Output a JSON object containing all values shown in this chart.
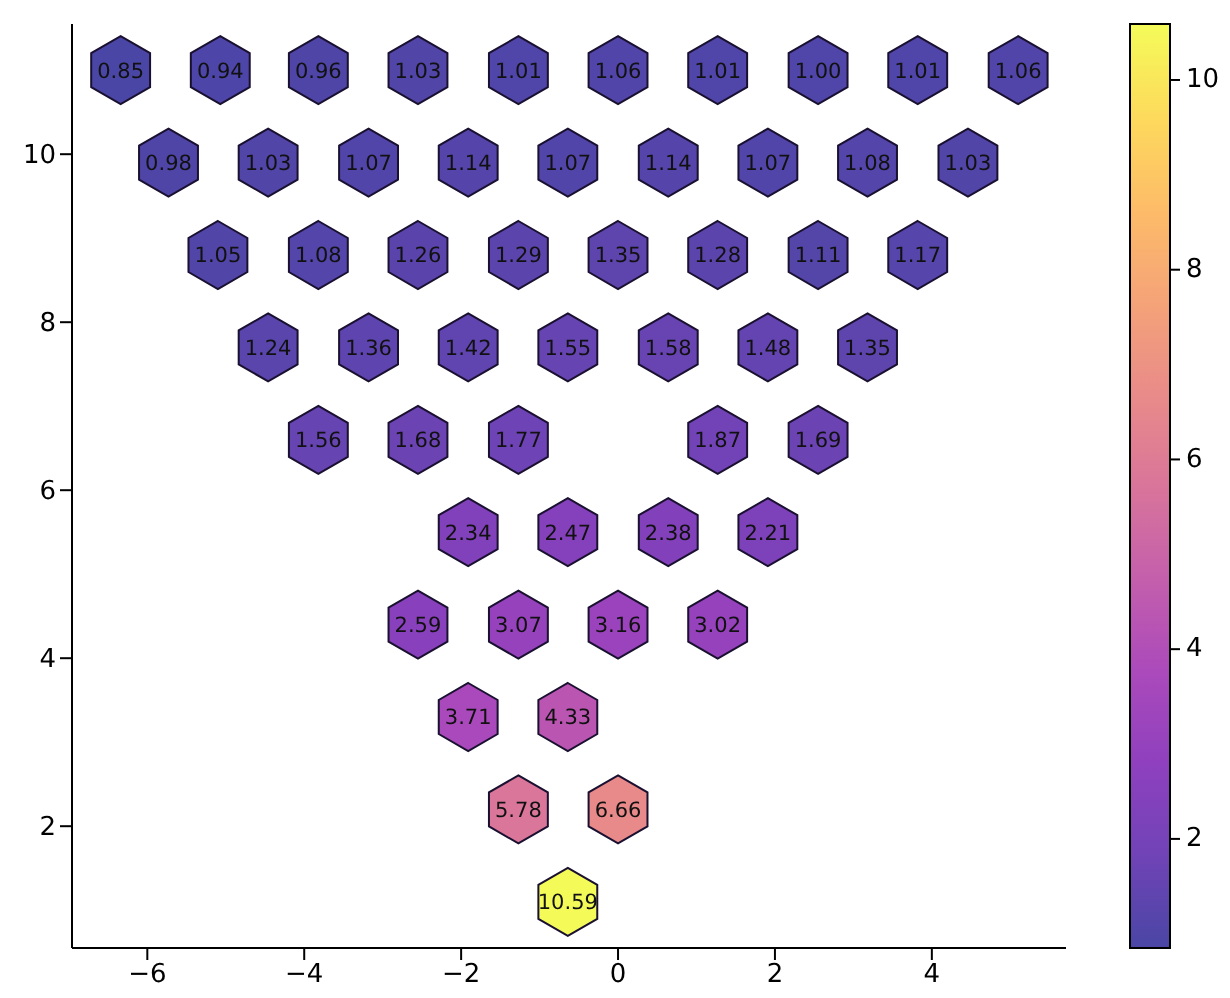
{
  "chart_data": {
    "type": "scatter",
    "x": [
      -6.34,
      -5.07,
      -3.82,
      -2.55,
      -1.27,
      0,
      1.27,
      2.55,
      3.82,
      5.1,
      -5.73,
      -4.46,
      -3.18,
      -1.91,
      -0.64,
      0.64,
      1.91,
      3.18,
      4.46,
      -5.1,
      -3.82,
      -2.55,
      -1.27,
      0,
      1.27,
      2.55,
      3.82,
      -4.46,
      -3.18,
      -1.91,
      -0.64,
      0.64,
      1.91,
      3.18,
      -3.82,
      -2.55,
      -1.27,
      1.27,
      2.55,
      -1.91,
      -0.64,
      0.64,
      1.91,
      -2.55,
      -1.27,
      0,
      1.27,
      -1.91,
      -0.64,
      -1.27,
      0,
      -0.64
    ],
    "values": [
      11,
      11,
      11,
      11,
      11,
      11,
      11,
      11,
      11,
      11,
      9.9,
      9.9,
      9.9,
      9.9,
      9.9,
      9.9,
      9.9,
      9.9,
      9.9,
      8.8,
      8.8,
      8.8,
      8.8,
      8.8,
      8.8,
      8.8,
      8.8,
      7.7,
      7.7,
      7.7,
      7.7,
      7.7,
      7.7,
      7.7,
      6.6,
      6.6,
      6.6,
      6.6,
      6.6,
      5.5,
      5.5,
      5.5,
      5.5,
      4.4,
      4.4,
      4.4,
      4.4,
      3.3,
      3.3,
      2.2,
      2.2,
      1.1
    ],
    "cvalues": [
      0.85,
      0.94,
      0.96,
      1.03,
      1.01,
      1.06,
      1.01,
      1.0,
      1.01,
      1.06,
      0.98,
      1.03,
      1.07,
      1.14,
      1.07,
      1.14,
      1.07,
      1.08,
      1.03,
      1.05,
      1.08,
      1.26,
      1.29,
      1.35,
      1.28,
      1.11,
      1.17,
      1.24,
      1.36,
      1.42,
      1.55,
      1.58,
      1.48,
      1.35,
      1.56,
      1.68,
      1.77,
      1.87,
      1.69,
      2.34,
      2.47,
      2.38,
      2.21,
      2.59,
      3.07,
      3.16,
      3.02,
      3.71,
      4.33,
      5.78,
      6.66,
      10.59
    ],
    "annotations": [
      {
        "text": "0.85",
        "x": -6.34,
        "y": 11
      },
      {
        "text": "0.94",
        "x": -5.07,
        "y": 11
      },
      {
        "text": "0.96",
        "x": -3.82,
        "y": 11
      },
      {
        "text": "1.03",
        "x": -2.55,
        "y": 11
      },
      {
        "text": "1.01",
        "x": -1.27,
        "y": 11
      },
      {
        "text": "1.06",
        "x": 0,
        "y": 11
      },
      {
        "text": "1.01",
        "x": 1.27,
        "y": 11
      },
      {
        "text": "1.00",
        "x": 2.55,
        "y": 11
      },
      {
        "text": "1.01",
        "x": 3.82,
        "y": 11
      },
      {
        "text": "1.06",
        "x": 5.1,
        "y": 11
      },
      {
        "text": "0.98",
        "x": -5.73,
        "y": 9.9
      },
      {
        "text": "1.03",
        "x": -4.46,
        "y": 9.9
      },
      {
        "text": "1.07",
        "x": -3.18,
        "y": 9.9
      },
      {
        "text": "1.14",
        "x": -1.91,
        "y": 9.9
      },
      {
        "text": "1.07",
        "x": -0.64,
        "y": 9.9
      },
      {
        "text": "1.14",
        "x": 0.64,
        "y": 9.9
      },
      {
        "text": "1.07",
        "x": 1.91,
        "y": 9.9
      },
      {
        "text": "1.08",
        "x": 3.18,
        "y": 9.9
      },
      {
        "text": "1.03",
        "x": 4.46,
        "y": 9.9
      },
      {
        "text": "1.05",
        "x": -5.1,
        "y": 8.8
      },
      {
        "text": "1.08",
        "x": -3.82,
        "y": 8.8
      },
      {
        "text": "1.26",
        "x": -2.55,
        "y": 8.8
      },
      {
        "text": "1.29",
        "x": -1.27,
        "y": 8.8
      },
      {
        "text": "1.35",
        "x": 0,
        "y": 8.8
      },
      {
        "text": "1.28",
        "x": 1.27,
        "y": 8.8
      },
      {
        "text": "1.11",
        "x": 2.55,
        "y": 8.8
      },
      {
        "text": "1.17",
        "x": 3.82,
        "y": 8.8
      },
      {
        "text": "1.24",
        "x": -4.46,
        "y": 7.7
      },
      {
        "text": "1.36",
        "x": -3.18,
        "y": 7.7
      },
      {
        "text": "1.42",
        "x": -1.91,
        "y": 7.7
      },
      {
        "text": "1.55",
        "x": -0.64,
        "y": 7.7
      },
      {
        "text": "1.58",
        "x": 0.64,
        "y": 7.7
      },
      {
        "text": "1.48",
        "x": 1.91,
        "y": 7.7
      },
      {
        "text": "1.35",
        "x": 3.18,
        "y": 7.7
      },
      {
        "text": "1.56",
        "x": -3.82,
        "y": 6.6
      },
      {
        "text": "1.68",
        "x": -2.55,
        "y": 6.6
      },
      {
        "text": "1.77",
        "x": -1.27,
        "y": 6.6
      },
      {
        "text": "1.87",
        "x": 1.27,
        "y": 6.6
      },
      {
        "text": "1.69",
        "x": 2.55,
        "y": 6.6
      },
      {
        "text": "2.34",
        "x": -1.91,
        "y": 5.5
      },
      {
        "text": "2.47",
        "x": -0.64,
        "y": 5.5
      },
      {
        "text": "2.38",
        "x": 0.64,
        "y": 5.5
      },
      {
        "text": "2.21",
        "x": 1.91,
        "y": 5.5
      },
      {
        "text": "2.59",
        "x": -2.55,
        "y": 4.4
      },
      {
        "text": "3.07",
        "x": -1.27,
        "y": 4.4
      },
      {
        "text": "3.16",
        "x": 0,
        "y": 4.4
      },
      {
        "text": "3.02",
        "x": 1.27,
        "y": 4.4
      },
      {
        "text": "3.71",
        "x": -1.91,
        "y": 3.3
      },
      {
        "text": "4.33",
        "x": -0.64,
        "y": 3.3
      },
      {
        "text": "5.78",
        "x": -1.27,
        "y": 2.2
      },
      {
        "text": "6.66",
        "x": 0,
        "y": 2.2
      },
      {
        "text": "10.59",
        "x": -0.64,
        "y": 1.1
      }
    ],
    "xlim": [
      -6.96,
      5.71
    ],
    "xticks": [
      -6,
      -4,
      -2,
      0,
      2,
      4
    ],
    "ylim": [
      0.55,
      11.55
    ],
    "yticks": [
      2,
      4,
      6,
      8,
      10
    ],
    "clim": [
      0.85,
      10.59
    ],
    "cticks": [
      2,
      4,
      6,
      8,
      10
    ]
  }
}
